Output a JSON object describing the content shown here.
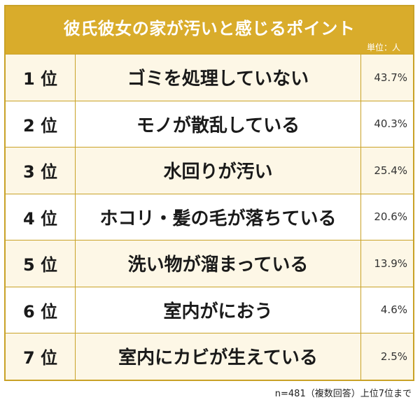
{
  "chart_data": {
    "type": "table",
    "title": "彼氏彼女の家が汚いと感じるポイント",
    "unit_label": "単位：人",
    "footnote": "n=481（複数回答）上位7位まで",
    "rows": [
      {
        "rank": "1 位",
        "label": "ゴミを処理していない",
        "value": "43.7%"
      },
      {
        "rank": "2 位",
        "label": "モノが散乱している",
        "value": "40.3%"
      },
      {
        "rank": "3 位",
        "label": "水回りが汚い",
        "value": "25.4%"
      },
      {
        "rank": "4 位",
        "label": "ホコリ・髪の毛が落ちている",
        "value": "20.6%"
      },
      {
        "rank": "5 位",
        "label": "洗い物が溜まっている",
        "value": "13.9%"
      },
      {
        "rank": "6 位",
        "label": "室内がにおう",
        "value": "4.6%"
      },
      {
        "rank": "7 位",
        "label": "室内にカビが生えている",
        "value": "2.5%"
      }
    ]
  },
  "colors": {
    "header": "#d9ac2b",
    "border": "#c9a227",
    "odd_row": "#fdf7e6",
    "even_row": "#ffffff"
  }
}
